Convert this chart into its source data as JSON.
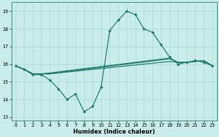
{
  "xlabel": "Humidex (Indice chaleur)",
  "xlim": [
    -0.5,
    23.5
  ],
  "ylim": [
    12.8,
    19.5
  ],
  "yticks": [
    13,
    14,
    15,
    16,
    17,
    18,
    19
  ],
  "xticks": [
    0,
    1,
    2,
    3,
    4,
    5,
    6,
    7,
    8,
    9,
    10,
    11,
    12,
    13,
    14,
    15,
    16,
    17,
    18,
    19,
    20,
    21,
    22,
    23
  ],
  "bg_color": "#c8ece8",
  "line_color": "#1a7a6e",
  "grid_color": "#a8d8d4",
  "series_main": [
    15.9,
    15.7,
    15.4,
    15.4,
    15.1,
    14.6,
    14.0,
    14.3,
    13.3,
    13.6,
    14.7,
    17.9,
    18.5,
    19.0,
    18.8,
    18.0,
    17.8,
    17.1,
    16.4,
    16.0,
    16.1,
    16.2,
    16.1,
    15.9
  ],
  "series_flat": [
    [
      15.9,
      15.7,
      15.45,
      15.45,
      15.45,
      15.5,
      15.55,
      15.6,
      15.65,
      15.7,
      15.75,
      15.8,
      15.85,
      15.9,
      15.95,
      16.0,
      16.05,
      16.1,
      16.15,
      16.1,
      16.1,
      16.15,
      16.2,
      15.9
    ],
    [
      15.9,
      15.7,
      15.45,
      15.45,
      15.45,
      15.52,
      15.58,
      15.64,
      15.7,
      15.76,
      15.82,
      15.88,
      15.94,
      16.0,
      16.06,
      16.12,
      16.18,
      16.24,
      16.3,
      16.1,
      16.1,
      16.15,
      16.2,
      15.9
    ],
    [
      15.9,
      15.7,
      15.45,
      15.45,
      15.5,
      15.56,
      15.62,
      15.68,
      15.74,
      15.8,
      15.86,
      15.92,
      15.98,
      16.04,
      16.1,
      16.16,
      16.22,
      16.28,
      16.34,
      16.1,
      16.1,
      16.15,
      16.2,
      15.9
    ]
  ],
  "markersize": 2.0,
  "linewidth": 0.9,
  "tick_fontsize": 5.0,
  "xlabel_fontsize": 6.0
}
